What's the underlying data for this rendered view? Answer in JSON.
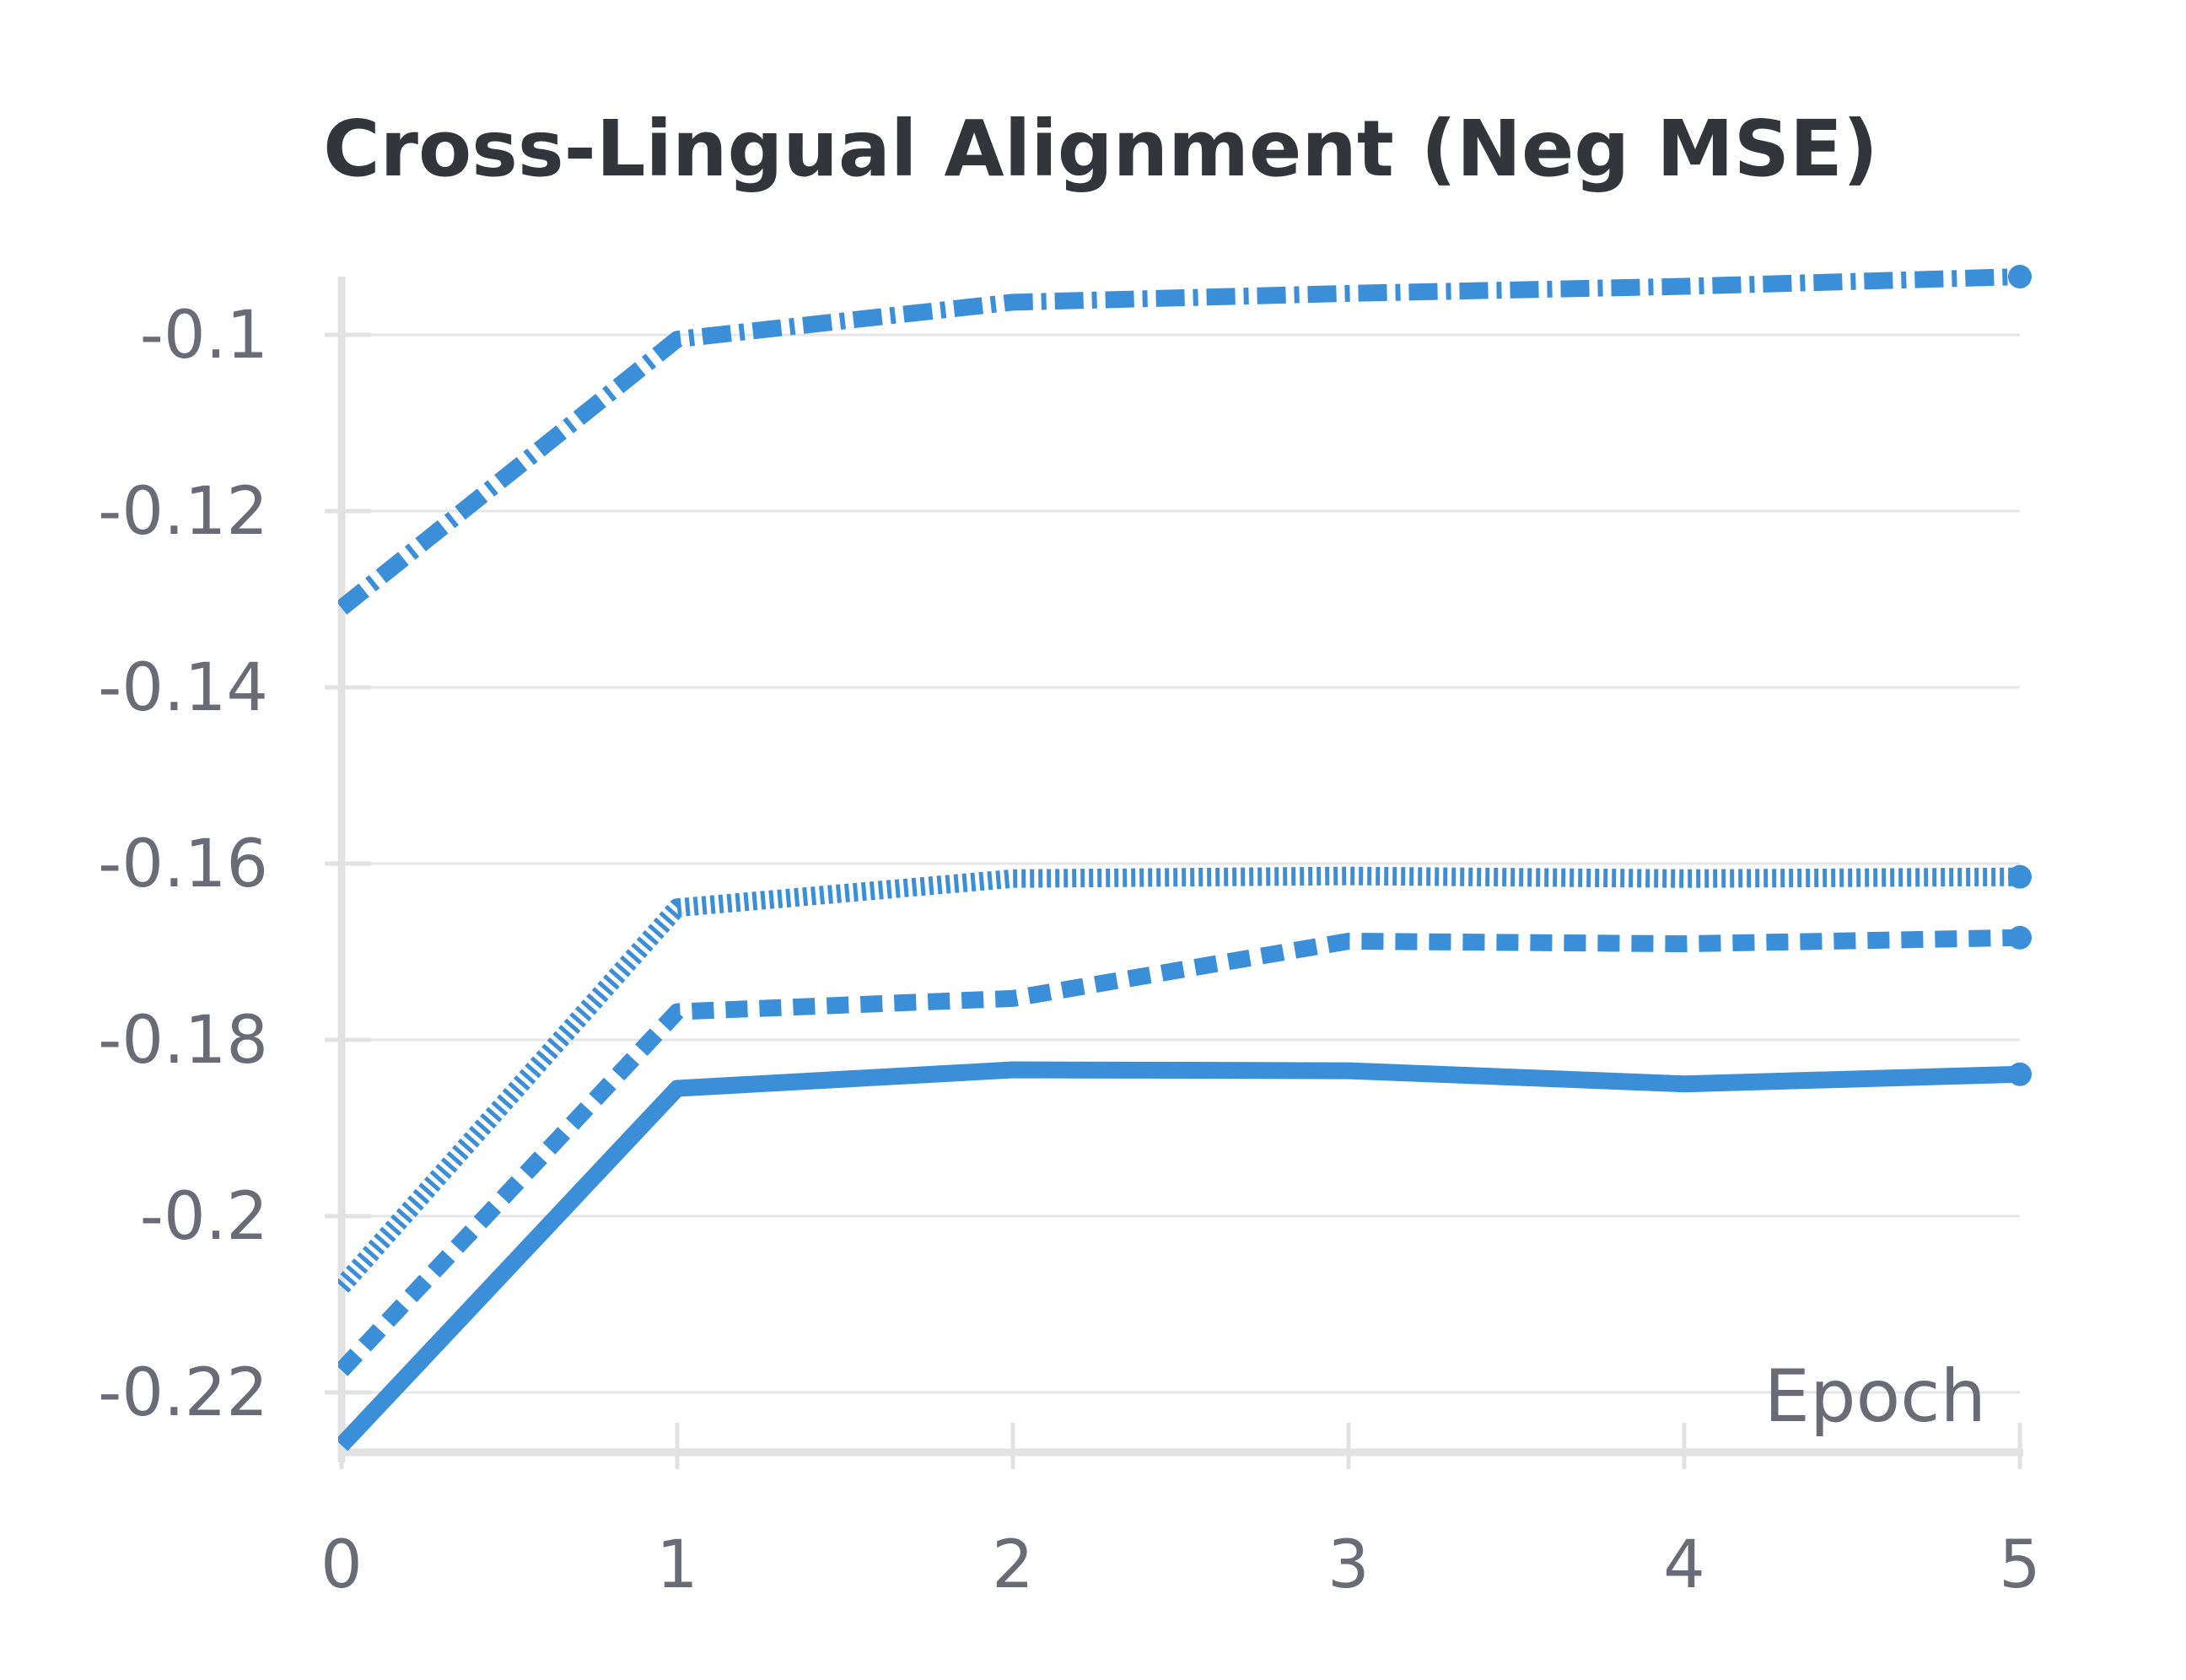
{
  "chart_data": {
    "type": "line",
    "title": "Cross-Lingual Alignment (Neg MSE)",
    "xlabel": "Epoch",
    "ylabel": "",
    "x": [
      0,
      1,
      2,
      3,
      4,
      5
    ],
    "xlim": [
      0,
      5
    ],
    "ylim": [
      -0.227,
      -0.093
    ],
    "x_ticks": [
      "0",
      "1",
      "2",
      "3",
      "4",
      "5"
    ],
    "y_ticks": [
      -0.1,
      -0.12,
      -0.14,
      -0.16,
      -0.18,
      -0.2,
      -0.22
    ],
    "y_tick_labels": [
      "-0.1",
      "-0.12",
      "-0.14",
      "-0.16",
      "-0.18",
      "-0.2",
      "-0.22"
    ],
    "grid": true,
    "legend": "none",
    "colors": {
      "series": "#3b8ed8",
      "grid": "#e6e6e6",
      "axis": "#e2e2e2",
      "text": "#6b6b77",
      "title": "#32363b"
    },
    "series": [
      {
        "style": "solid",
        "values": [
          -0.226,
          -0.1855,
          -0.1834,
          -0.1835,
          -0.185,
          -0.1839
        ]
      },
      {
        "style": "dashed",
        "values": [
          -0.2175,
          -0.1768,
          -0.1753,
          -0.1688,
          -0.1691,
          -0.1684
        ]
      },
      {
        "style": "dotted",
        "values": [
          -0.208,
          -0.165,
          -0.1617,
          -0.1614,
          -0.1617,
          -0.1615
        ]
      },
      {
        "style": "dashdot",
        "values": [
          -0.131,
          -0.1005,
          -0.0963,
          -0.0953,
          -0.0945,
          -0.0934
        ]
      }
    ]
  }
}
